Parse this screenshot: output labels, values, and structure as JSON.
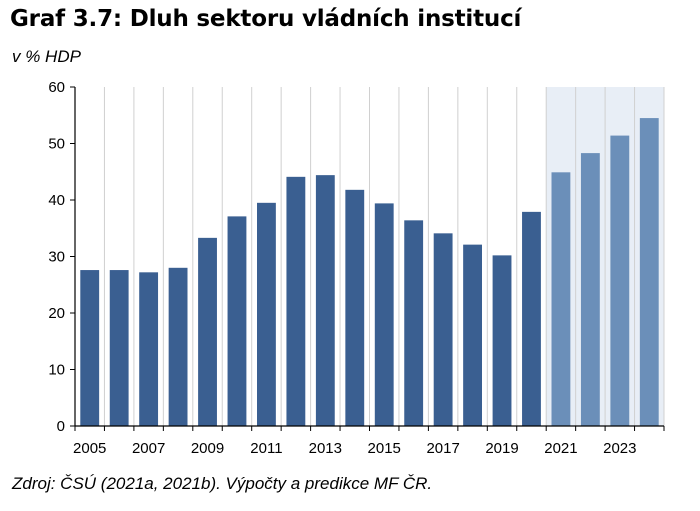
{
  "title": "Graf 3.7: Dluh sektoru vládních institucí",
  "subtitle": "v % HDP",
  "source": "Zdroj: ČSÚ (2021a, 2021b). Výpočty a predikce MF ČR.",
  "chart_data": {
    "type": "bar",
    "categories": [
      "2005",
      "2006",
      "2007",
      "2008",
      "2009",
      "2010",
      "2011",
      "2012",
      "2013",
      "2014",
      "2015",
      "2016",
      "2017",
      "2018",
      "2019",
      "2020",
      "2021",
      "2022",
      "2023",
      "2024"
    ],
    "x_tick_labels": [
      "2005",
      "2007",
      "2009",
      "2011",
      "2013",
      "2015",
      "2017",
      "2019",
      "2021",
      "2023"
    ],
    "values": [
      27.6,
      27.6,
      27.2,
      28.0,
      33.3,
      37.1,
      39.5,
      44.1,
      44.4,
      41.8,
      39.4,
      36.4,
      34.1,
      32.1,
      30.2,
      37.9,
      44.9,
      48.3,
      51.4,
      54.5
    ],
    "forecast_from": "2021",
    "ylim": [
      0,
      60
    ],
    "y_ticks": [
      0,
      10,
      20,
      30,
      40,
      50,
      60
    ],
    "grid": "vertical",
    "colors": {
      "actual": "#3a5f91",
      "forecast": "#6b8fb9",
      "forecast_bg": "#e8eef6",
      "grid": "#d0d0d0",
      "axis": "#000000"
    }
  }
}
